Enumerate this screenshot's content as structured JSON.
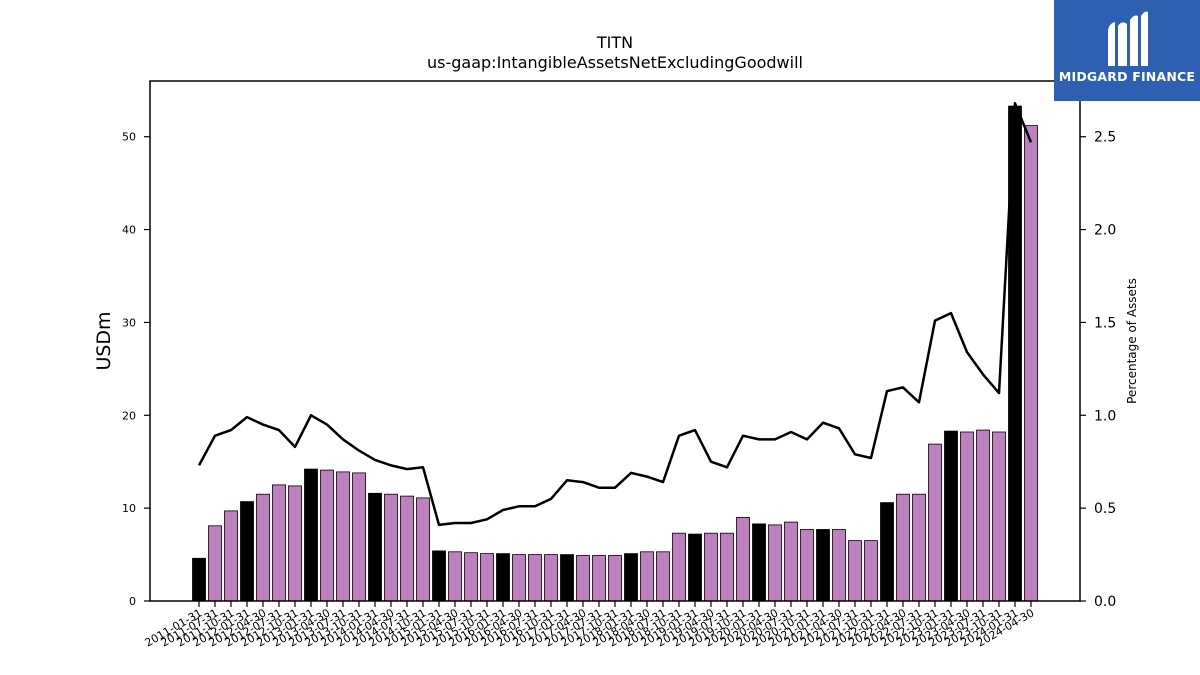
{
  "brand": {
    "name": "MIDGARD FINANCE",
    "color": "#2f5fb0",
    "icon": "midgard-logo-icon"
  },
  "chart_data": {
    "type": "bar",
    "title": "TITN",
    "subtitle": "us-gaap:IntangibleAssetsNetExcludingGoodwill",
    "ylabel": "USDm",
    "y2label": "Percentage of Assets",
    "ylim": [
      0,
      56
    ],
    "y2lim": [
      0,
      2.8
    ],
    "yticks": [
      "0",
      "10",
      "20",
      "30",
      "40",
      "50"
    ],
    "y2ticks": [
      "0.0",
      "0.5",
      "1.0",
      "1.5",
      "2.0",
      "2.5"
    ],
    "colors": {
      "annual_bar": "#000000",
      "quarter_bar": "#bf80bf",
      "line": "#000000"
    },
    "categories": [
      "2011-01-31",
      "2011-07-31",
      "2011-10-31",
      "2012-01-31",
      "2012-04-30",
      "2012-07-31",
      "2012-10-31",
      "2013-01-31",
      "2013-04-30",
      "2013-07-31",
      "2013-10-31",
      "2014-01-31",
      "2014-04-30",
      "2014-07-31",
      "2014-10-31",
      "2015-01-31",
      "2015-04-30",
      "2015-07-31",
      "2015-10-31",
      "2016-01-31",
      "2016-04-30",
      "2016-07-31",
      "2016-10-31",
      "2017-01-31",
      "2017-04-30",
      "2017-07-31",
      "2017-10-31",
      "2018-01-31",
      "2018-04-30",
      "2018-07-31",
      "2018-10-31",
      "2019-01-31",
      "2019-04-30",
      "2019-07-31",
      "2019-10-31",
      "2020-01-31",
      "2020-04-30",
      "2020-07-31",
      "2020-10-31",
      "2021-01-31",
      "2021-04-30",
      "2021-07-31",
      "2021-10-31",
      "2022-01-31",
      "2022-04-30",
      "2022-07-31",
      "2022-10-31",
      "2023-01-31",
      "2023-04-30",
      "2023-07-31",
      "2023-10-31",
      "2024-01-31",
      "2024-04-30"
    ],
    "series": [
      {
        "type": "bar",
        "axis": "left",
        "values": [
          4.6,
          8.1,
          9.7,
          10.7,
          11.5,
          12.5,
          12.4,
          14.2,
          14.1,
          13.9,
          13.8,
          11.6,
          11.5,
          11.3,
          11.1,
          5.4,
          5.3,
          5.2,
          5.1,
          5.1,
          5.0,
          5.0,
          5.0,
          5.0,
          4.9,
          4.9,
          4.9,
          5.1,
          5.3,
          5.3,
          7.3,
          7.2,
          7.3,
          7.3,
          9.0,
          8.3,
          8.2,
          8.5,
          7.7,
          7.7,
          7.7,
          6.5,
          6.5,
          10.6,
          11.5,
          11.5,
          16.9,
          18.3,
          18.2,
          18.4,
          18.2,
          53.3,
          51.2
        ],
        "annual": [
          true,
          false,
          false,
          true,
          false,
          false,
          false,
          true,
          false,
          false,
          false,
          true,
          false,
          false,
          false,
          true,
          false,
          false,
          false,
          true,
          false,
          false,
          false,
          true,
          false,
          false,
          false,
          true,
          false,
          false,
          false,
          true,
          false,
          false,
          false,
          true,
          false,
          false,
          false,
          true,
          false,
          false,
          false,
          true,
          false,
          false,
          false,
          true,
          false,
          false,
          false,
          true,
          false
        ]
      },
      {
        "type": "line",
        "axis": "right",
        "values": [
          0.73,
          0.89,
          0.92,
          0.99,
          0.95,
          0.92,
          0.83,
          1.0,
          0.95,
          0.87,
          0.81,
          0.76,
          0.73,
          0.71,
          0.72,
          0.41,
          0.42,
          0.42,
          0.44,
          0.49,
          0.51,
          0.51,
          0.55,
          0.65,
          0.64,
          0.61,
          0.61,
          0.69,
          0.67,
          0.64,
          0.89,
          0.92,
          0.75,
          0.72,
          0.89,
          0.87,
          0.87,
          0.91,
          0.87,
          0.96,
          0.93,
          0.79,
          0.77,
          1.13,
          1.15,
          1.07,
          1.51,
          1.55,
          1.34,
          1.22,
          1.12,
          2.68,
          2.47
        ]
      }
    ]
  }
}
